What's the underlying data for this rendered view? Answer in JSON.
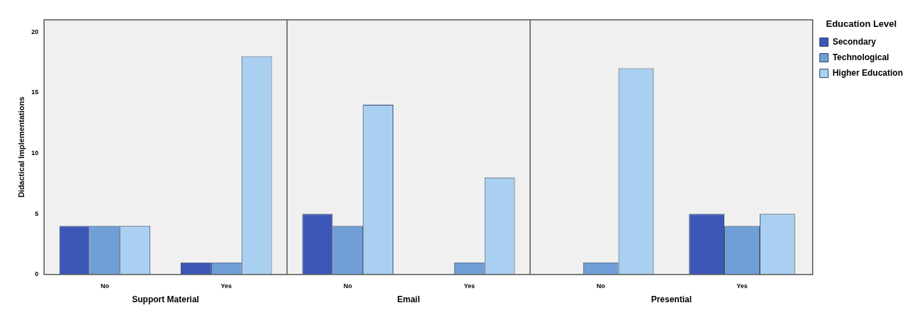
{
  "chart_data": [
    {
      "type": "bar",
      "categories": [
        "No",
        "Yes"
      ],
      "xlabel": "Support Material",
      "ylabel": "Didactical Implementations",
      "ylim": [
        0,
        21
      ],
      "yticks": [
        0,
        5,
        10,
        15,
        20
      ],
      "series": [
        {
          "color": "#3b57b8",
          "values": [
            4,
            1
          ]
        },
        {
          "color": "#6f9fd6",
          "values": [
            4,
            1
          ]
        },
        {
          "color": "#a9d0f0",
          "values": [
            4,
            18
          ]
        }
      ],
      "legend": false
    },
    {
      "type": "bar",
      "categories": [
        "No",
        "Yes"
      ],
      "xlabel": "Email",
      "ylim": [
        0,
        21
      ],
      "yticks": [
        0,
        5,
        10,
        15,
        20
      ],
      "tick_labels": "x",
      "series": [
        {
          "color": "#3b57b8",
          "values": [
            5,
            0
          ]
        },
        {
          "color": "#6f9fd6",
          "values": [
            4,
            1
          ]
        },
        {
          "color": "#a9d0f0",
          "values": [
            14,
            8
          ]
        }
      ],
      "legend": false
    },
    {
      "type": "bar",
      "categories": [
        "No",
        "Yes"
      ],
      "xlabel": "Presential",
      "ylim": [
        0,
        21
      ],
      "yticks": [
        0,
        5,
        10,
        15,
        20
      ],
      "tick_labels": "x",
      "legend": "right",
      "legend_title": "Education Level",
      "series": [
        {
          "name": "Secondary",
          "color": "#3b57b8",
          "values": [
            0,
            5
          ]
        },
        {
          "name": "Technological",
          "color": "#6f9fd6",
          "values": [
            1,
            4
          ]
        },
        {
          "name": "Higher Education",
          "color": "#a9d0f0",
          "values": [
            17,
            5
          ]
        }
      ]
    }
  ]
}
